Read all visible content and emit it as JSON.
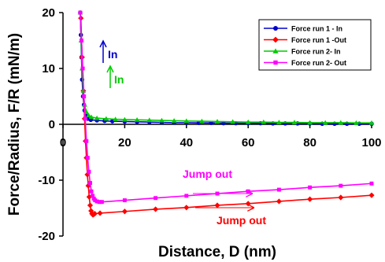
{
  "chart_data": {
    "type": "line",
    "title": "",
    "xlabel": "Distance, D (nm)",
    "ylabel": "Force/Radius, F/R (mN/m)",
    "xlim": [
      0,
      100
    ],
    "ylim": [
      -20,
      20
    ],
    "xticks": [
      0,
      20,
      40,
      60,
      80,
      100
    ],
    "yticks": [
      -20,
      -10,
      0,
      10,
      20
    ],
    "xtick_labels": [
      "0",
      "20",
      "40",
      "60",
      "80",
      "100"
    ],
    "ytick_labels": [
      "-20",
      "-10",
      "0",
      "10",
      "20"
    ],
    "grid": false,
    "legend_position": "top-right",
    "series": [
      {
        "name": "Force run 1 - In",
        "color": "#0000cc",
        "marker": "circle",
        "x": [
          5.6,
          5.8,
          6.0,
          6.2,
          6.5,
          6.8,
          7.0,
          7.5,
          8.0,
          9.0,
          11,
          13.5,
          16,
          20,
          24,
          28,
          32,
          36,
          40,
          44,
          48,
          52,
          56,
          60,
          64,
          68,
          72,
          76,
          80,
          84,
          88,
          92,
          96,
          100
        ],
        "y": [
          20,
          16,
          12,
          8,
          5,
          3.5,
          2.5,
          1.5,
          1.0,
          0.8,
          0.7,
          0.6,
          0.55,
          0.5,
          0.45,
          0.4,
          0.35,
          0.3,
          0.3,
          0.25,
          0.25,
          0.2,
          0.2,
          0.2,
          0.2,
          0.15,
          0.15,
          0.15,
          0.15,
          0.1,
          0.1,
          0.1,
          0.1,
          0.1
        ]
      },
      {
        "name": "Force run 1 -Out",
        "color": "#ff0000",
        "marker": "diamond",
        "x": [
          5.8,
          6.2,
          6.6,
          7.0,
          7.3,
          7.6,
          7.9,
          8.2,
          8.5,
          8.8,
          9.1,
          9.4,
          9.7,
          10.0,
          10.3,
          12,
          20,
          30,
          40,
          50,
          60,
          70,
          80,
          90,
          100
        ],
        "y": [
          19,
          12,
          6,
          1,
          -3,
          -6,
          -9,
          -11,
          -13,
          -14.5,
          -15.5,
          -16,
          -16.2,
          -16.1,
          -16.0,
          -15.9,
          -15.6,
          -15.2,
          -14.9,
          -14.5,
          -14.2,
          -13.8,
          -13.4,
          -13.1,
          -12.7
        ]
      },
      {
        "name": "Force run 2- In",
        "color": "#00cc00",
        "marker": "triangle",
        "x": [
          5.6,
          5.9,
          6.2,
          6.6,
          7.0,
          7.6,
          8.3,
          9.2,
          11,
          14,
          17,
          20,
          24,
          28,
          32,
          36,
          40,
          45,
          50,
          55,
          60,
          65,
          70,
          75,
          80,
          85,
          90,
          95,
          100
        ],
        "y": [
          20,
          15,
          10,
          6,
          3.5,
          2.2,
          1.6,
          1.3,
          1.1,
          1.0,
          0.9,
          0.85,
          0.8,
          0.75,
          0.7,
          0.65,
          0.6,
          0.55,
          0.5,
          0.45,
          0.4,
          0.4,
          0.35,
          0.35,
          0.3,
          0.3,
          0.3,
          0.25,
          0.25
        ]
      },
      {
        "name": "Force run 2- Out",
        "color": "#ff00ff",
        "marker": "square",
        "x": [
          5.6,
          6.0,
          6.4,
          6.8,
          7.2,
          7.6,
          8.0,
          8.4,
          8.8,
          9.2,
          9.6,
          10.0,
          10.4,
          11.0,
          11.8,
          12.6,
          20,
          30,
          40,
          50,
          60,
          70,
          80,
          90,
          100
        ],
        "y": [
          20,
          15,
          10,
          5,
          1,
          -3,
          -6,
          -8.5,
          -10.5,
          -12,
          -12.8,
          -13.3,
          -13.6,
          -13.8,
          -13.9,
          -13.9,
          -13.6,
          -13.2,
          -12.8,
          -12.4,
          -12.0,
          -11.7,
          -11.3,
          -11.0,
          -10.6
        ]
      }
    ],
    "annotations": [
      {
        "text": "In",
        "color": "#0000cc",
        "arrow": "up"
      },
      {
        "text": "In",
        "color": "#00cc00",
        "arrow": "up"
      },
      {
        "text": "Jump out",
        "color": "#ff00ff",
        "arrow": "right"
      },
      {
        "text": "Jump out",
        "color": "#ff0000",
        "arrow": "right"
      }
    ]
  }
}
